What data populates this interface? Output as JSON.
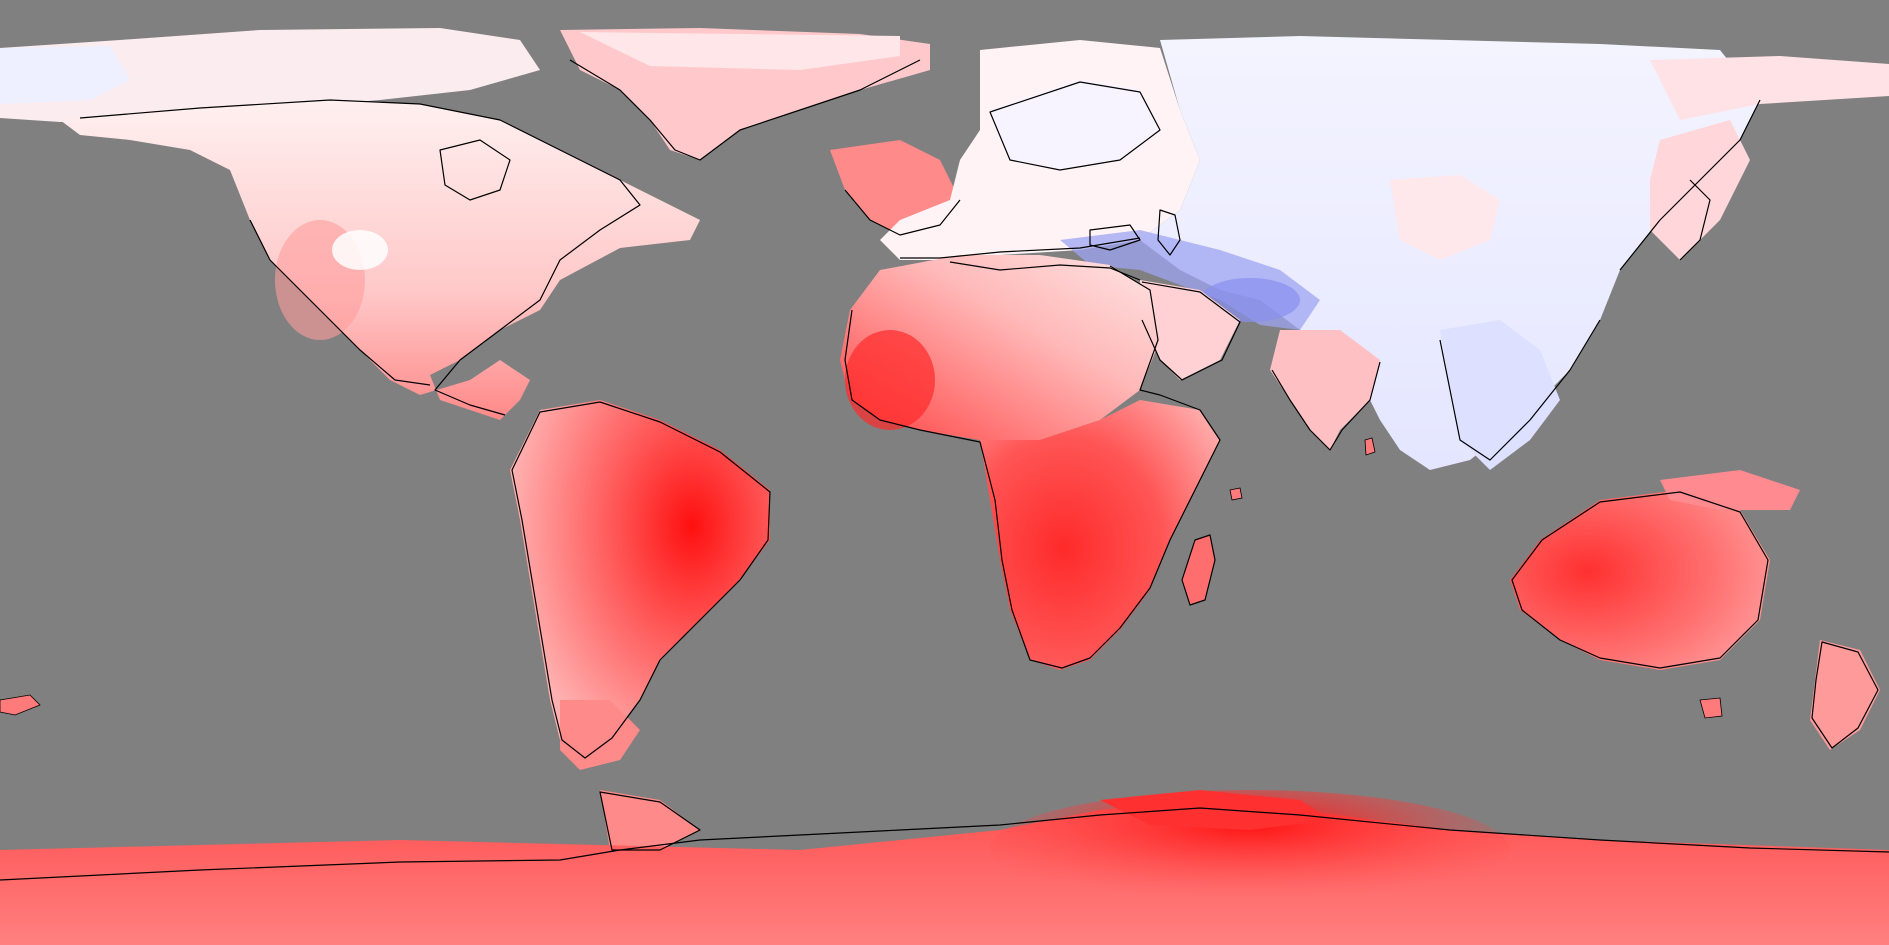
{
  "map": {
    "projection": "equirectangular",
    "color_scale": {
      "type": "diverging",
      "cold": "#5b63e6",
      "neutral": "#ffffff",
      "warm": "#ff0000",
      "no_data": "#808080",
      "coastline": "#000000"
    },
    "regions": [
      {
        "name": "north-america",
        "shade": "light-red"
      },
      {
        "name": "greenland",
        "shade": "light-red"
      },
      {
        "name": "south-america",
        "shade": "red"
      },
      {
        "name": "europe",
        "shade": "near-white"
      },
      {
        "name": "africa",
        "shade": "red"
      },
      {
        "name": "asia",
        "shade": "light-blue"
      },
      {
        "name": "central-asia-band",
        "shade": "blue"
      },
      {
        "name": "india",
        "shade": "light-red"
      },
      {
        "name": "australia",
        "shade": "red"
      },
      {
        "name": "new-zealand",
        "shade": "light-red"
      },
      {
        "name": "antarctica",
        "shade": "red"
      }
    ]
  }
}
